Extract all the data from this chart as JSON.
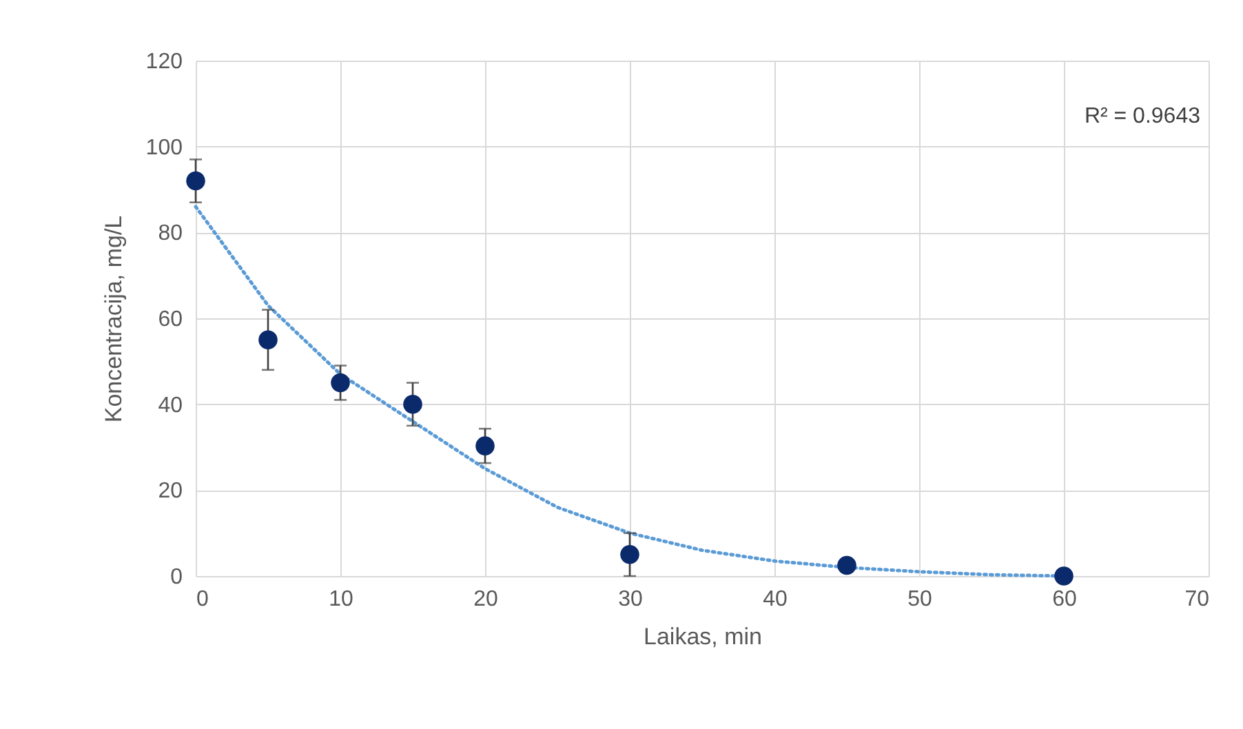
{
  "chart_data": {
    "type": "scatter",
    "xlabel": "Laikas, min",
    "ylabel": "Koncentracija, mg/L",
    "x": [
      0,
      5,
      10,
      15,
      20,
      30,
      45,
      60
    ],
    "xlim": [
      0,
      70
    ],
    "xticks": [
      0,
      10,
      20,
      30,
      40,
      50,
      60,
      70
    ],
    "ylim": [
      0,
      120
    ],
    "yticks": [
      0,
      20,
      40,
      60,
      80,
      100,
      120
    ],
    "grid": true,
    "marker": "circle",
    "annotations": [
      "R² = 0.9643"
    ],
    "series": [
      {
        "type": "line",
        "x": [
          0,
          5,
          10,
          15,
          20,
          25,
          30,
          35,
          40,
          45,
          50,
          55,
          60
        ],
        "values": [
          86,
          63,
          47,
          36,
          25,
          16,
          10,
          6,
          3.5,
          2,
          1,
          0.3,
          0
        ],
        "color": "#5b9bd5",
        "line_style": "dotted",
        "marker": "none"
      },
      {
        "color": "#0b2a6b",
        "values": [
          92,
          55,
          45,
          40,
          30.3,
          5,
          2.5,
          0
        ],
        "errors": [
          5,
          7,
          4,
          5,
          4,
          5,
          null,
          null
        ]
      }
    ]
  }
}
